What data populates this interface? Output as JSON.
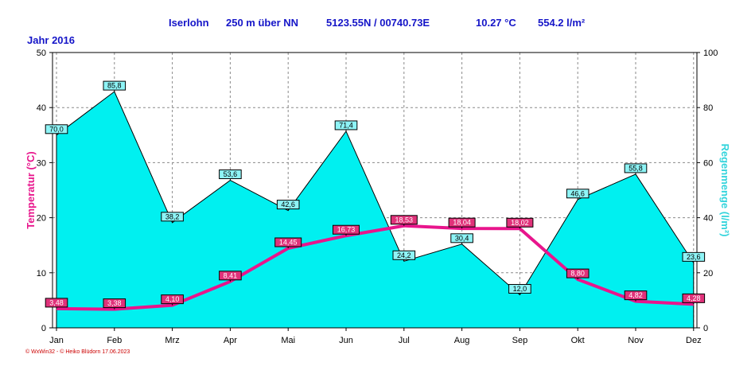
{
  "header": {
    "station": "Iserlohn",
    "altitude": "250 m über NN",
    "coords": "5123.55N / 00740.73E",
    "mean_temp": "10.27 °C",
    "total_rain": "554.2 l/m²",
    "year": "Jahr  2016"
  },
  "footer": "© WxWin32 - © Heiko Blüdorn 17.06.2023",
  "colors": {
    "rain_fill": "#00f0f0",
    "temp_line": "#e8158c",
    "left_axis_label": "#e8158c",
    "right_axis_label": "#33d4dc",
    "header_text": "#1515c8"
  },
  "chart_data": {
    "type": "area",
    "categories": [
      "Jan",
      "Feb",
      "Mrz",
      "Apr",
      "Mai",
      "Jun",
      "Jul",
      "Aug",
      "Sep",
      "Okt",
      "Nov",
      "Dez"
    ],
    "series": [
      {
        "name": "Regenmenge",
        "kind": "area",
        "axis": "right",
        "values": [
          70.0,
          85.8,
          38.2,
          53.6,
          42.6,
          71.4,
          24.2,
          30.4,
          12.0,
          46.6,
          55.8,
          23.6
        ],
        "labels": [
          "70,0",
          "85,8",
          "38,2",
          "53,6",
          "42,6",
          "71,4",
          "24,2",
          "30,4",
          "12,0",
          "46,6",
          "55,8",
          "23,6"
        ]
      },
      {
        "name": "Temperatur",
        "kind": "line",
        "axis": "left",
        "values": [
          3.48,
          3.38,
          4.1,
          8.41,
          14.45,
          16.73,
          18.53,
          18.04,
          18.02,
          8.8,
          4.82,
          4.28
        ],
        "labels": [
          "3,48",
          "3,38",
          "4,10",
          "8,41",
          "14,45",
          "16,73",
          "18,53",
          "18,04",
          "18,02",
          "8,80",
          "4,82",
          "4,28"
        ]
      }
    ],
    "ylabel": "Temperatur  (°C)",
    "ylabel_right": "Regenmenge  (l/m²)",
    "ylim": [
      0,
      50
    ],
    "ylim_right": [
      0,
      100
    ],
    "yticks": [
      0,
      10,
      20,
      30,
      40,
      50
    ],
    "yticks_right": [
      0,
      20,
      40,
      60,
      80,
      100
    ],
    "grid": true
  }
}
